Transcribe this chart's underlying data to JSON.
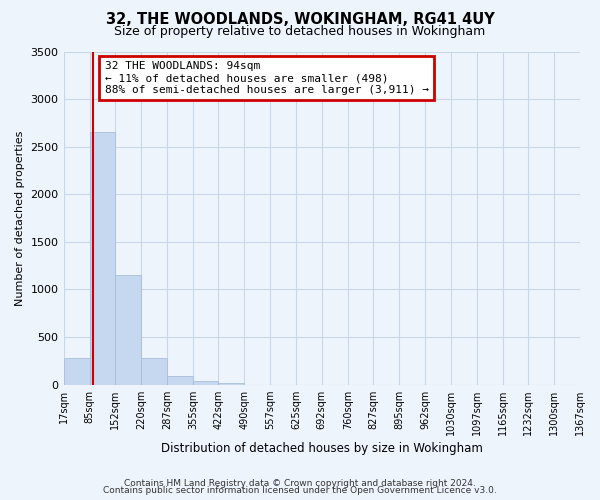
{
  "title": "32, THE WOODLANDS, WOKINGHAM, RG41 4UY",
  "subtitle": "Size of property relative to detached houses in Wokingham",
  "bar_edges": [
    17,
    85,
    152,
    220,
    287,
    355,
    422,
    490,
    557,
    625,
    692,
    760,
    827,
    895,
    962,
    1030,
    1097,
    1165,
    1232,
    1300,
    1367
  ],
  "bar_heights": [
    280,
    2650,
    1150,
    280,
    90,
    40,
    20,
    0,
    0,
    0,
    0,
    0,
    0,
    0,
    0,
    0,
    0,
    0,
    0,
    0
  ],
  "bar_color": "#c5d8f0",
  "bar_edge_color": "#a0b8d8",
  "grid_color": "#c8d8e8",
  "background_color": "#eef4fb",
  "property_line_x": 94,
  "property_line_color": "#cc0000",
  "annotation_text": "32 THE WOODLANDS: 94sqm\n← 11% of detached houses are smaller (498)\n88% of semi-detached houses are larger (3,911) →",
  "annotation_box_color": "#cc0000",
  "xlabel": "Distribution of detached houses by size in Wokingham",
  "ylabel": "Number of detached properties",
  "ylim": [
    0,
    3500
  ],
  "yticks": [
    0,
    500,
    1000,
    1500,
    2000,
    2500,
    3000,
    3500
  ],
  "footer_line1": "Contains HM Land Registry data © Crown copyright and database right 2024.",
  "footer_line2": "Contains public sector information licensed under the Open Government Licence v3.0.",
  "tick_labels": [
    "17sqm",
    "85sqm",
    "152sqm",
    "220sqm",
    "287sqm",
    "355sqm",
    "422sqm",
    "490sqm",
    "557sqm",
    "625sqm",
    "692sqm",
    "760sqm",
    "827sqm",
    "895sqm",
    "962sqm",
    "1030sqm",
    "1097sqm",
    "1165sqm",
    "1232sqm",
    "1300sqm",
    "1367sqm"
  ]
}
